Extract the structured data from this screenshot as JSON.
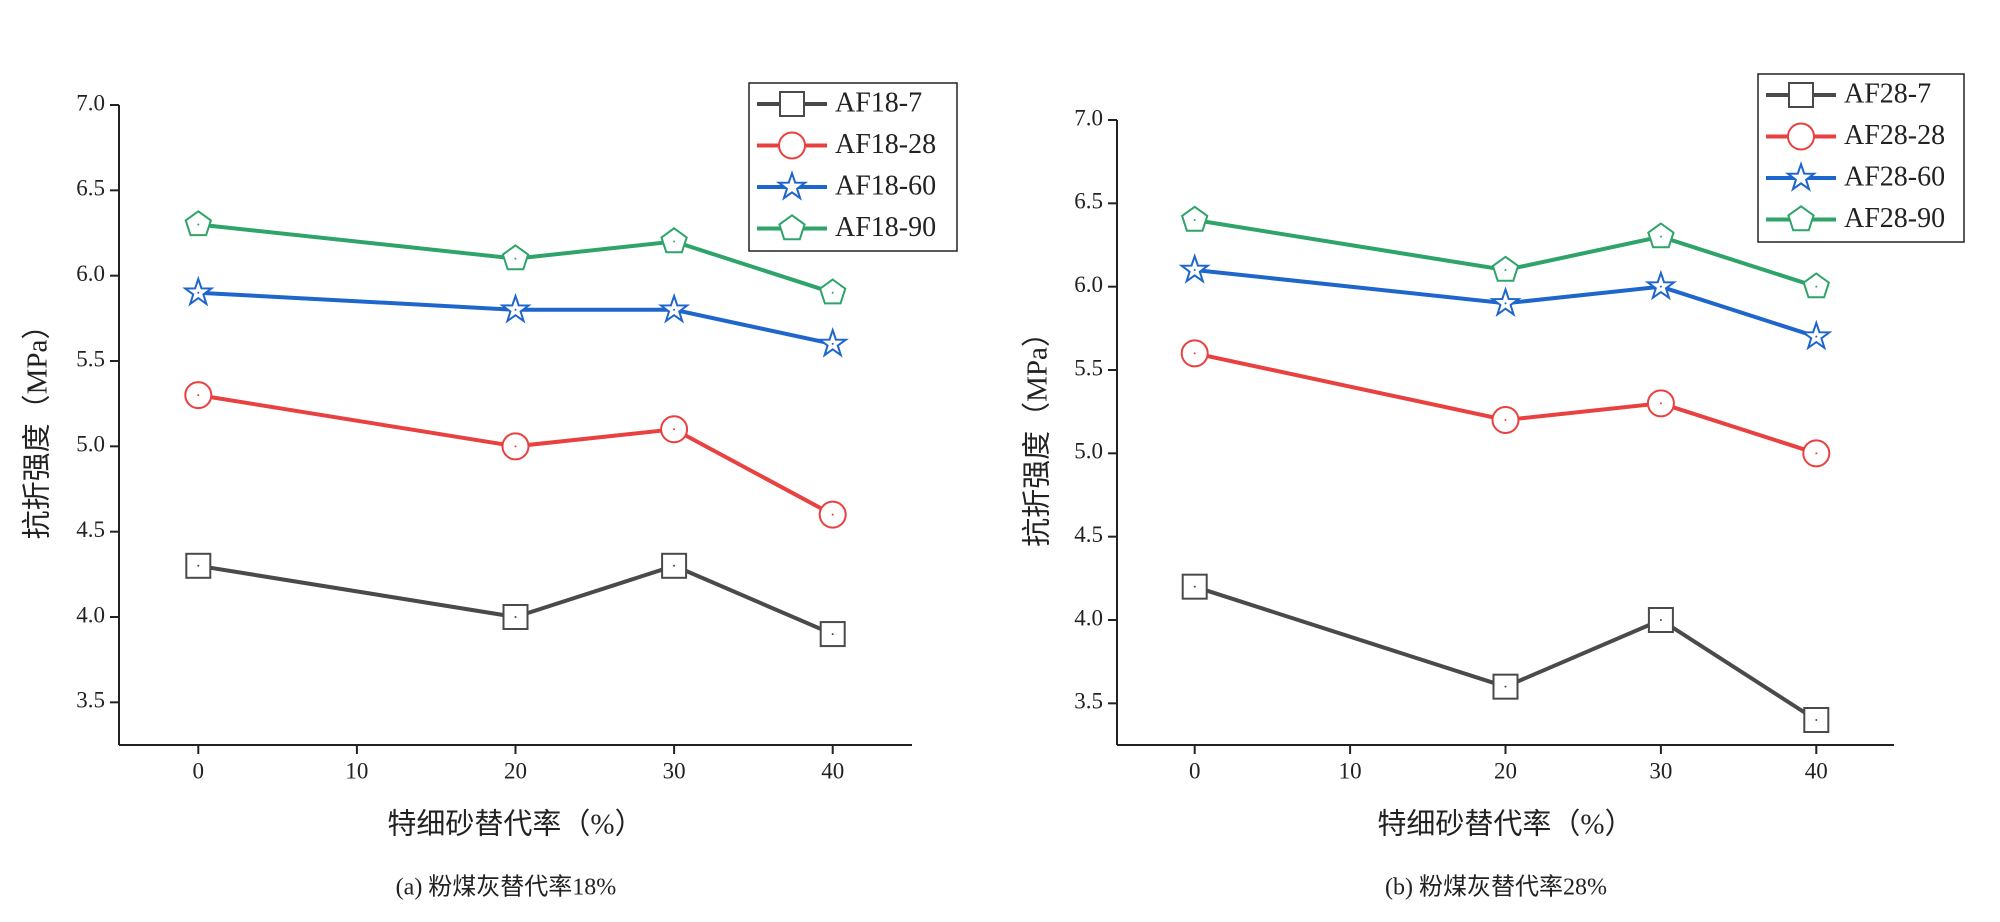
{
  "chart_data": [
    {
      "type": "line",
      "caption": "(a) 粉煤灰替代率18%",
      "x_label": "特细砂替代率（%）",
      "y_label": "抗折强度（MPa）",
      "x": [
        0,
        20,
        30,
        40
      ],
      "series": [
        {
          "name": "AF18-7",
          "color": "#4a4a4a",
          "marker": "square",
          "values": [
            4.3,
            4.0,
            4.3,
            3.9
          ]
        },
        {
          "name": "AF18-28",
          "color": "#e8413f",
          "marker": "circle",
          "values": [
            5.3,
            5.0,
            5.1,
            4.6
          ]
        },
        {
          "name": "AF18-60",
          "color": "#1f66cc",
          "marker": "star",
          "values": [
            5.9,
            5.8,
            5.8,
            5.6
          ]
        },
        {
          "name": "AF18-90",
          "color": "#2ea36a",
          "marker": "pentagon",
          "values": [
            6.3,
            6.1,
            6.2,
            5.9
          ]
        }
      ],
      "xlim": [
        -5,
        45
      ],
      "xticks": [
        0,
        10,
        20,
        30,
        40
      ],
      "ylim": [
        3.25,
        7.0
      ],
      "yticks": [
        3.5,
        {
          "value": 4.0,
          "label": "4.0"
        },
        4.5,
        {
          "value": 5.0,
          "label": "5.0"
        },
        5.5,
        {
          "value": 6.0,
          "label": "6.0"
        },
        6.5,
        {
          "value": 7.0,
          "label": "7.0"
        }
      ],
      "legend": "upper right"
    },
    {
      "type": "line",
      "caption": "(b) 粉煤灰替代率28%",
      "x_label": "特细砂替代率（%）",
      "y_label": "抗折强度（MPa）",
      "x": [
        0,
        20,
        30,
        40
      ],
      "series": [
        {
          "name": "AF28-7",
          "color": "#4a4a4a",
          "marker": "square",
          "values": [
            4.2,
            3.6,
            4.0,
            3.4
          ]
        },
        {
          "name": "AF28-28",
          "color": "#e8413f",
          "marker": "circle",
          "values": [
            5.6,
            5.2,
            5.3,
            5.0
          ]
        },
        {
          "name": "AF28-60",
          "color": "#1f66cc",
          "marker": "star",
          "values": [
            6.1,
            5.9,
            6.0,
            5.7
          ]
        },
        {
          "name": "AF28-90",
          "color": "#2ea36a",
          "marker": "pentagon",
          "values": [
            6.4,
            6.1,
            6.3,
            6.0
          ]
        }
      ],
      "xlim": [
        -5,
        45
      ],
      "xticks": [
        0,
        10,
        20,
        30,
        40
      ],
      "ylim": [
        3.25,
        7.0
      ],
      "yticks": [
        3.5,
        {
          "value": 4.0,
          "label": "4.0"
        },
        4.5,
        {
          "value": 5.0,
          "label": "5.0"
        },
        5.5,
        {
          "value": 6.0,
          "label": "6.0"
        },
        6.5,
        {
          "value": 7.0,
          "label": "7.0"
        }
      ],
      "legend": "upper right"
    }
  ]
}
